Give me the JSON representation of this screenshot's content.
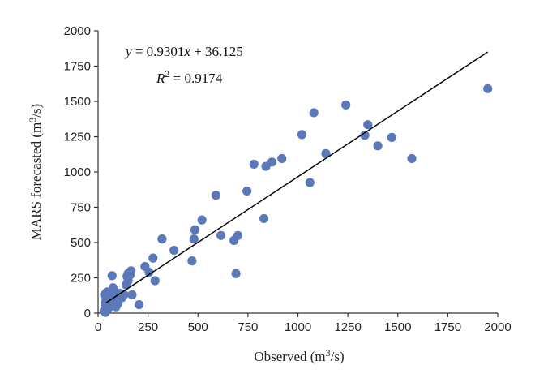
{
  "chart_data": {
    "type": "scatter",
    "xlabel": "Observed (m",
    "xlabel_sup": "3",
    "xlabel_tail": "/s)",
    "ylabel": "MARS forecasted (m",
    "ylabel_sup": "3",
    "ylabel_tail": "/s)",
    "xlim": [
      0,
      2000
    ],
    "ylim": [
      0,
      2000
    ],
    "xticks": [
      "0",
      "250",
      "500",
      "750",
      "1000",
      "1250",
      "1500",
      "1750",
      "2000"
    ],
    "yticks": [
      "0",
      "250",
      "500",
      "750",
      "1000",
      "1250",
      "1500",
      "1750",
      "2000"
    ],
    "equation": {
      "lhs": "y",
      "mid": " = 0.9301",
      "var": "x",
      "rhs": " + 36.125",
      "r2_base": "R",
      "r2_sup": "2",
      "r2_value": " = 0.9174"
    },
    "trendline": {
      "slope": 0.9301,
      "intercept": 36.125,
      "x_start": 40,
      "x_end": 1950
    },
    "points": [
      [
        1950,
        1590
      ],
      [
        1570,
        1095
      ],
      [
        1470,
        1245
      ],
      [
        1400,
        1185
      ],
      [
        1350,
        1335
      ],
      [
        1335,
        1260
      ],
      [
        1240,
        1475
      ],
      [
        1140,
        1130
      ],
      [
        1080,
        1420
      ],
      [
        1060,
        925
      ],
      [
        1020,
        1265
      ],
      [
        920,
        1095
      ],
      [
        870,
        1070
      ],
      [
        840,
        1040
      ],
      [
        830,
        670
      ],
      [
        780,
        1055
      ],
      [
        745,
        865
      ],
      [
        700,
        550
      ],
      [
        690,
        280
      ],
      [
        680,
        515
      ],
      [
        615,
        550
      ],
      [
        590,
        835
      ],
      [
        520,
        660
      ],
      [
        485,
        590
      ],
      [
        480,
        525
      ],
      [
        470,
        370
      ],
      [
        380,
        445
      ],
      [
        320,
        525
      ],
      [
        285,
        230
      ],
      [
        275,
        390
      ],
      [
        255,
        290
      ],
      [
        235,
        330
      ],
      [
        205,
        60
      ],
      [
        170,
        130
      ],
      [
        165,
        300
      ],
      [
        160,
        270
      ],
      [
        150,
        280
      ],
      [
        150,
        230
      ],
      [
        145,
        260
      ],
      [
        140,
        200
      ],
      [
        130,
        130
      ],
      [
        120,
        110
      ],
      [
        110,
        140
      ],
      [
        100,
        70
      ],
      [
        95,
        90
      ],
      [
        90,
        45
      ],
      [
        85,
        150
      ],
      [
        80,
        105
      ],
      [
        75,
        180
      ],
      [
        70,
        265
      ],
      [
        70,
        60
      ],
      [
        65,
        120
      ],
      [
        60,
        90
      ],
      [
        55,
        140
      ],
      [
        55,
        40
      ],
      [
        50,
        70
      ],
      [
        48,
        110
      ],
      [
        45,
        20
      ],
      [
        44,
        150
      ],
      [
        42,
        50
      ],
      [
        40,
        95
      ],
      [
        38,
        30
      ],
      [
        36,
        5
      ],
      [
        35,
        70
      ],
      [
        32,
        130
      ],
      [
        30,
        15
      ]
    ]
  }
}
